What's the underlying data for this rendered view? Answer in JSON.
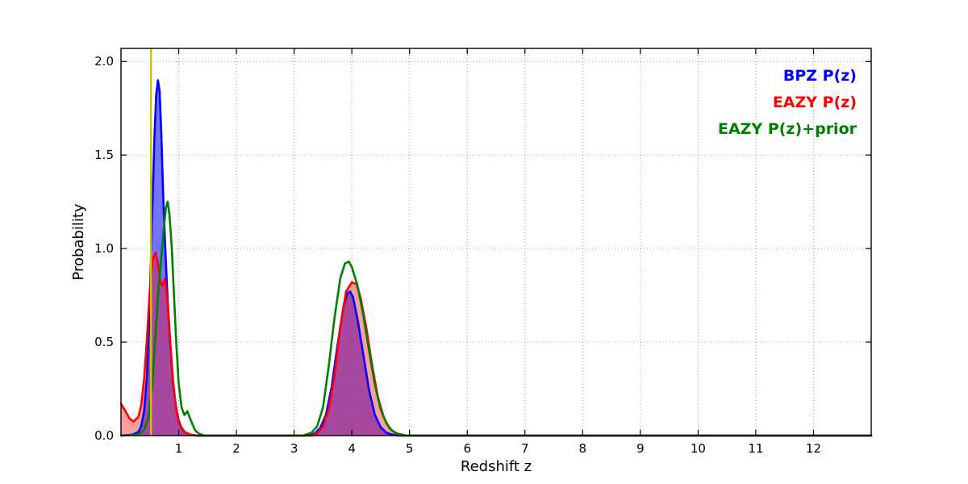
{
  "chart_data": {
    "type": "line",
    "title": "",
    "xlabel": "Redshift z",
    "ylabel": "Probability",
    "xlim": [
      0,
      13
    ],
    "ylim": [
      0,
      2.07
    ],
    "xticks": [
      1,
      2,
      3,
      4,
      5,
      6,
      7,
      8,
      9,
      10,
      11,
      12
    ],
    "yticks": [
      0.0,
      0.5,
      1.0,
      1.5,
      2.0
    ],
    "ytick_labels": [
      "0.0",
      "0.5",
      "1.0",
      "1.5",
      "2.0"
    ],
    "grid": true,
    "legend_position": "upper right",
    "vline": {
      "x": 0.52,
      "color": "#cfc000"
    },
    "series": [
      {
        "name": "BPZ P(z)",
        "color": "#0000ff",
        "fill": true,
        "fill_alpha": 0.55,
        "points": [
          [
            0,
            0
          ],
          [
            0.2,
            0.005
          ],
          [
            0.3,
            0.02
          ],
          [
            0.35,
            0.05
          ],
          [
            0.4,
            0.13
          ],
          [
            0.45,
            0.32
          ],
          [
            0.5,
            0.72
          ],
          [
            0.55,
            1.28
          ],
          [
            0.58,
            1.6
          ],
          [
            0.61,
            1.82
          ],
          [
            0.64,
            1.9
          ],
          [
            0.67,
            1.84
          ],
          [
            0.7,
            1.6
          ],
          [
            0.73,
            1.3
          ],
          [
            0.76,
            1.05
          ],
          [
            0.8,
            0.78
          ],
          [
            0.85,
            0.5
          ],
          [
            0.9,
            0.29
          ],
          [
            0.95,
            0.16
          ],
          [
            1.0,
            0.08
          ],
          [
            1.05,
            0.04
          ],
          [
            1.1,
            0.02
          ],
          [
            1.2,
            0.005
          ],
          [
            1.3,
            0
          ],
          [
            3.2,
            0
          ],
          [
            3.35,
            0.01
          ],
          [
            3.45,
            0.04
          ],
          [
            3.55,
            0.11
          ],
          [
            3.65,
            0.26
          ],
          [
            3.75,
            0.48
          ],
          [
            3.85,
            0.68
          ],
          [
            3.92,
            0.76
          ],
          [
            3.97,
            0.77
          ],
          [
            4.02,
            0.74
          ],
          [
            4.1,
            0.62
          ],
          [
            4.2,
            0.43
          ],
          [
            4.3,
            0.24
          ],
          [
            4.4,
            0.11
          ],
          [
            4.5,
            0.045
          ],
          [
            4.6,
            0.015
          ],
          [
            4.7,
            0.005
          ],
          [
            4.8,
            0
          ],
          [
            13,
            0
          ]
        ]
      },
      {
        "name": "EAZY P(z)",
        "color": "#ff0000",
        "fill": true,
        "fill_alpha": 0.38,
        "points": [
          [
            0,
            0.17
          ],
          [
            0.08,
            0.13
          ],
          [
            0.15,
            0.09
          ],
          [
            0.22,
            0.075
          ],
          [
            0.3,
            0.1
          ],
          [
            0.35,
            0.16
          ],
          [
            0.4,
            0.3
          ],
          [
            0.45,
            0.52
          ],
          [
            0.5,
            0.78
          ],
          [
            0.55,
            0.94
          ],
          [
            0.6,
            0.98
          ],
          [
            0.64,
            0.92
          ],
          [
            0.68,
            0.83
          ],
          [
            0.72,
            0.8
          ],
          [
            0.76,
            0.84
          ],
          [
            0.8,
            0.74
          ],
          [
            0.85,
            0.52
          ],
          [
            0.9,
            0.3
          ],
          [
            0.95,
            0.15
          ],
          [
            1.0,
            0.07
          ],
          [
            1.1,
            0.02
          ],
          [
            1.2,
            0.005
          ],
          [
            1.3,
            0
          ],
          [
            3.3,
            0
          ],
          [
            3.4,
            0.01
          ],
          [
            3.5,
            0.05
          ],
          [
            3.6,
            0.14
          ],
          [
            3.7,
            0.32
          ],
          [
            3.8,
            0.58
          ],
          [
            3.9,
            0.77
          ],
          [
            4.0,
            0.82
          ],
          [
            4.08,
            0.81
          ],
          [
            4.15,
            0.74
          ],
          [
            4.25,
            0.58
          ],
          [
            4.35,
            0.38
          ],
          [
            4.45,
            0.21
          ],
          [
            4.55,
            0.1
          ],
          [
            4.65,
            0.04
          ],
          [
            4.75,
            0.015
          ],
          [
            4.85,
            0
          ],
          [
            13,
            0
          ]
        ]
      },
      {
        "name": "EAZY P(z)+prior",
        "color": "#008000",
        "fill": false,
        "fill_alpha": 0,
        "points": [
          [
            0,
            0
          ],
          [
            0.3,
            0.005
          ],
          [
            0.4,
            0.03
          ],
          [
            0.48,
            0.1
          ],
          [
            0.55,
            0.3
          ],
          [
            0.6,
            0.55
          ],
          [
            0.65,
            0.78
          ],
          [
            0.7,
            0.96
          ],
          [
            0.74,
            1.1
          ],
          [
            0.78,
            1.22
          ],
          [
            0.81,
            1.25
          ],
          [
            0.84,
            1.18
          ],
          [
            0.88,
            1.0
          ],
          [
            0.92,
            0.74
          ],
          [
            0.96,
            0.48
          ],
          [
            1.0,
            0.28
          ],
          [
            1.05,
            0.15
          ],
          [
            1.1,
            0.11
          ],
          [
            1.15,
            0.13
          ],
          [
            1.2,
            0.09
          ],
          [
            1.28,
            0.03
          ],
          [
            1.35,
            0.01
          ],
          [
            1.45,
            0
          ],
          [
            3.15,
            0
          ],
          [
            3.3,
            0.015
          ],
          [
            3.4,
            0.05
          ],
          [
            3.5,
            0.15
          ],
          [
            3.6,
            0.37
          ],
          [
            3.7,
            0.63
          ],
          [
            3.8,
            0.84
          ],
          [
            3.88,
            0.92
          ],
          [
            3.95,
            0.93
          ],
          [
            4.0,
            0.9
          ],
          [
            4.1,
            0.8
          ],
          [
            4.2,
            0.64
          ],
          [
            4.3,
            0.45
          ],
          [
            4.4,
            0.27
          ],
          [
            4.5,
            0.14
          ],
          [
            4.6,
            0.065
          ],
          [
            4.7,
            0.025
          ],
          [
            4.8,
            0.01
          ],
          [
            4.95,
            0
          ],
          [
            13,
            0
          ]
        ]
      }
    ]
  }
}
